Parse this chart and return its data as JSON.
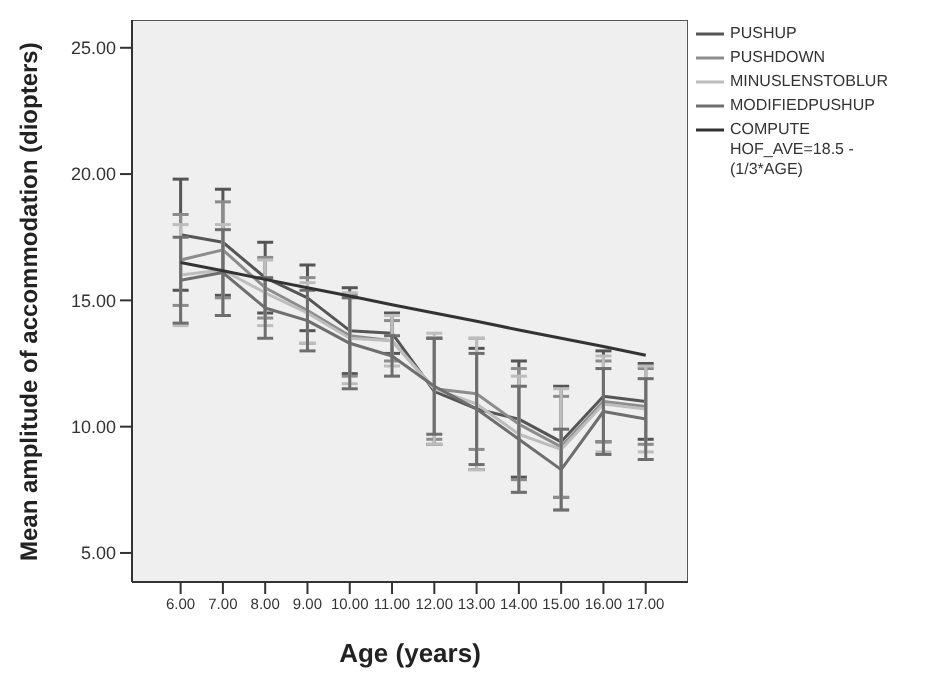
{
  "chart_data": {
    "type": "line",
    "xlabel": "Age (years)",
    "ylabel": "Mean amplitude of accommodation (diopters)",
    "x": [
      6,
      7,
      8,
      9,
      10,
      11,
      12,
      13,
      14,
      15,
      16,
      17
    ],
    "xlim": [
      4.85,
      18
    ],
    "xticks": [
      {
        "value": 6,
        "label": "6.00"
      },
      {
        "value": 7,
        "label": "7.00"
      },
      {
        "value": 8,
        "label": "8.00"
      },
      {
        "value": 9,
        "label": "9.00"
      },
      {
        "value": 10,
        "label": "10.00"
      },
      {
        "value": 11,
        "label": "11.00"
      },
      {
        "value": 12,
        "label": "12.00"
      },
      {
        "value": 13,
        "label": "13.00"
      },
      {
        "value": 14,
        "label": "14.00"
      },
      {
        "value": 15,
        "label": "15.00"
      },
      {
        "value": 16,
        "label": "16.00"
      },
      {
        "value": 17,
        "label": "17.00"
      }
    ],
    "ylim": [
      3.85,
      26.1
    ],
    "yticks": [
      {
        "value": 5,
        "label": "5.00"
      },
      {
        "value": 10,
        "label": "10.00"
      },
      {
        "value": 15,
        "label": "15.00"
      },
      {
        "value": 20,
        "label": "20.00"
      },
      {
        "value": 25,
        "label": "25.00"
      }
    ],
    "grid": false,
    "legend": "right",
    "marker": "none",
    "line_style": "solid",
    "series": [
      {
        "name": "PUSHUP",
        "color": "#555555",
        "values": [
          17.6,
          17.3,
          15.9,
          15.1,
          13.8,
          13.7,
          11.4,
          10.7,
          10.3,
          9.4,
          11.2,
          11.0
        ],
        "errors": [
          2.2,
          2.1,
          1.4,
          1.3,
          1.7,
          0.8,
          2.1,
          2.4,
          2.3,
          2.2,
          1.8,
          1.5
        ]
      },
      {
        "name": "PUSHDOWN",
        "color": "#8c8c8c",
        "values": [
          16.6,
          17.0,
          15.5,
          14.6,
          13.6,
          13.4,
          11.5,
          11.3,
          10.1,
          9.2,
          11.0,
          10.8
        ],
        "errors": [
          1.8,
          1.9,
          1.2,
          1.3,
          1.6,
          0.8,
          2.0,
          2.2,
          2.2,
          2.0,
          1.6,
          1.5
        ]
      },
      {
        "name": "MINUSLENSTOBLUR",
        "color": "#bdbdbd",
        "values": [
          16.0,
          16.2,
          15.3,
          14.5,
          13.5,
          13.4,
          11.5,
          10.9,
          9.7,
          9.1,
          10.9,
          10.7
        ],
        "errors": [
          2.0,
          1.8,
          1.3,
          1.2,
          1.8,
          1.0,
          2.2,
          2.6,
          2.3,
          2.4,
          1.9,
          1.7
        ]
      },
      {
        "name": "MODIFIEDPUSHUP",
        "color": "#6e6e6e",
        "values": [
          15.8,
          16.1,
          14.7,
          14.2,
          13.3,
          12.8,
          11.6,
          10.7,
          9.5,
          8.3,
          10.6,
          10.3
        ],
        "errors": [
          1.7,
          1.7,
          1.2,
          1.2,
          1.8,
          0.8,
          1.9,
          2.2,
          2.1,
          1.6,
          1.7,
          1.6
        ]
      },
      {
        "name": "COMPUTE HOF_AVE=18.5 - (1/3*AGE)",
        "color": "#333333",
        "values": [
          16.5,
          16.17,
          15.83,
          15.5,
          15.17,
          14.83,
          14.5,
          14.17,
          13.83,
          13.5,
          13.17,
          12.83
        ]
      }
    ]
  }
}
